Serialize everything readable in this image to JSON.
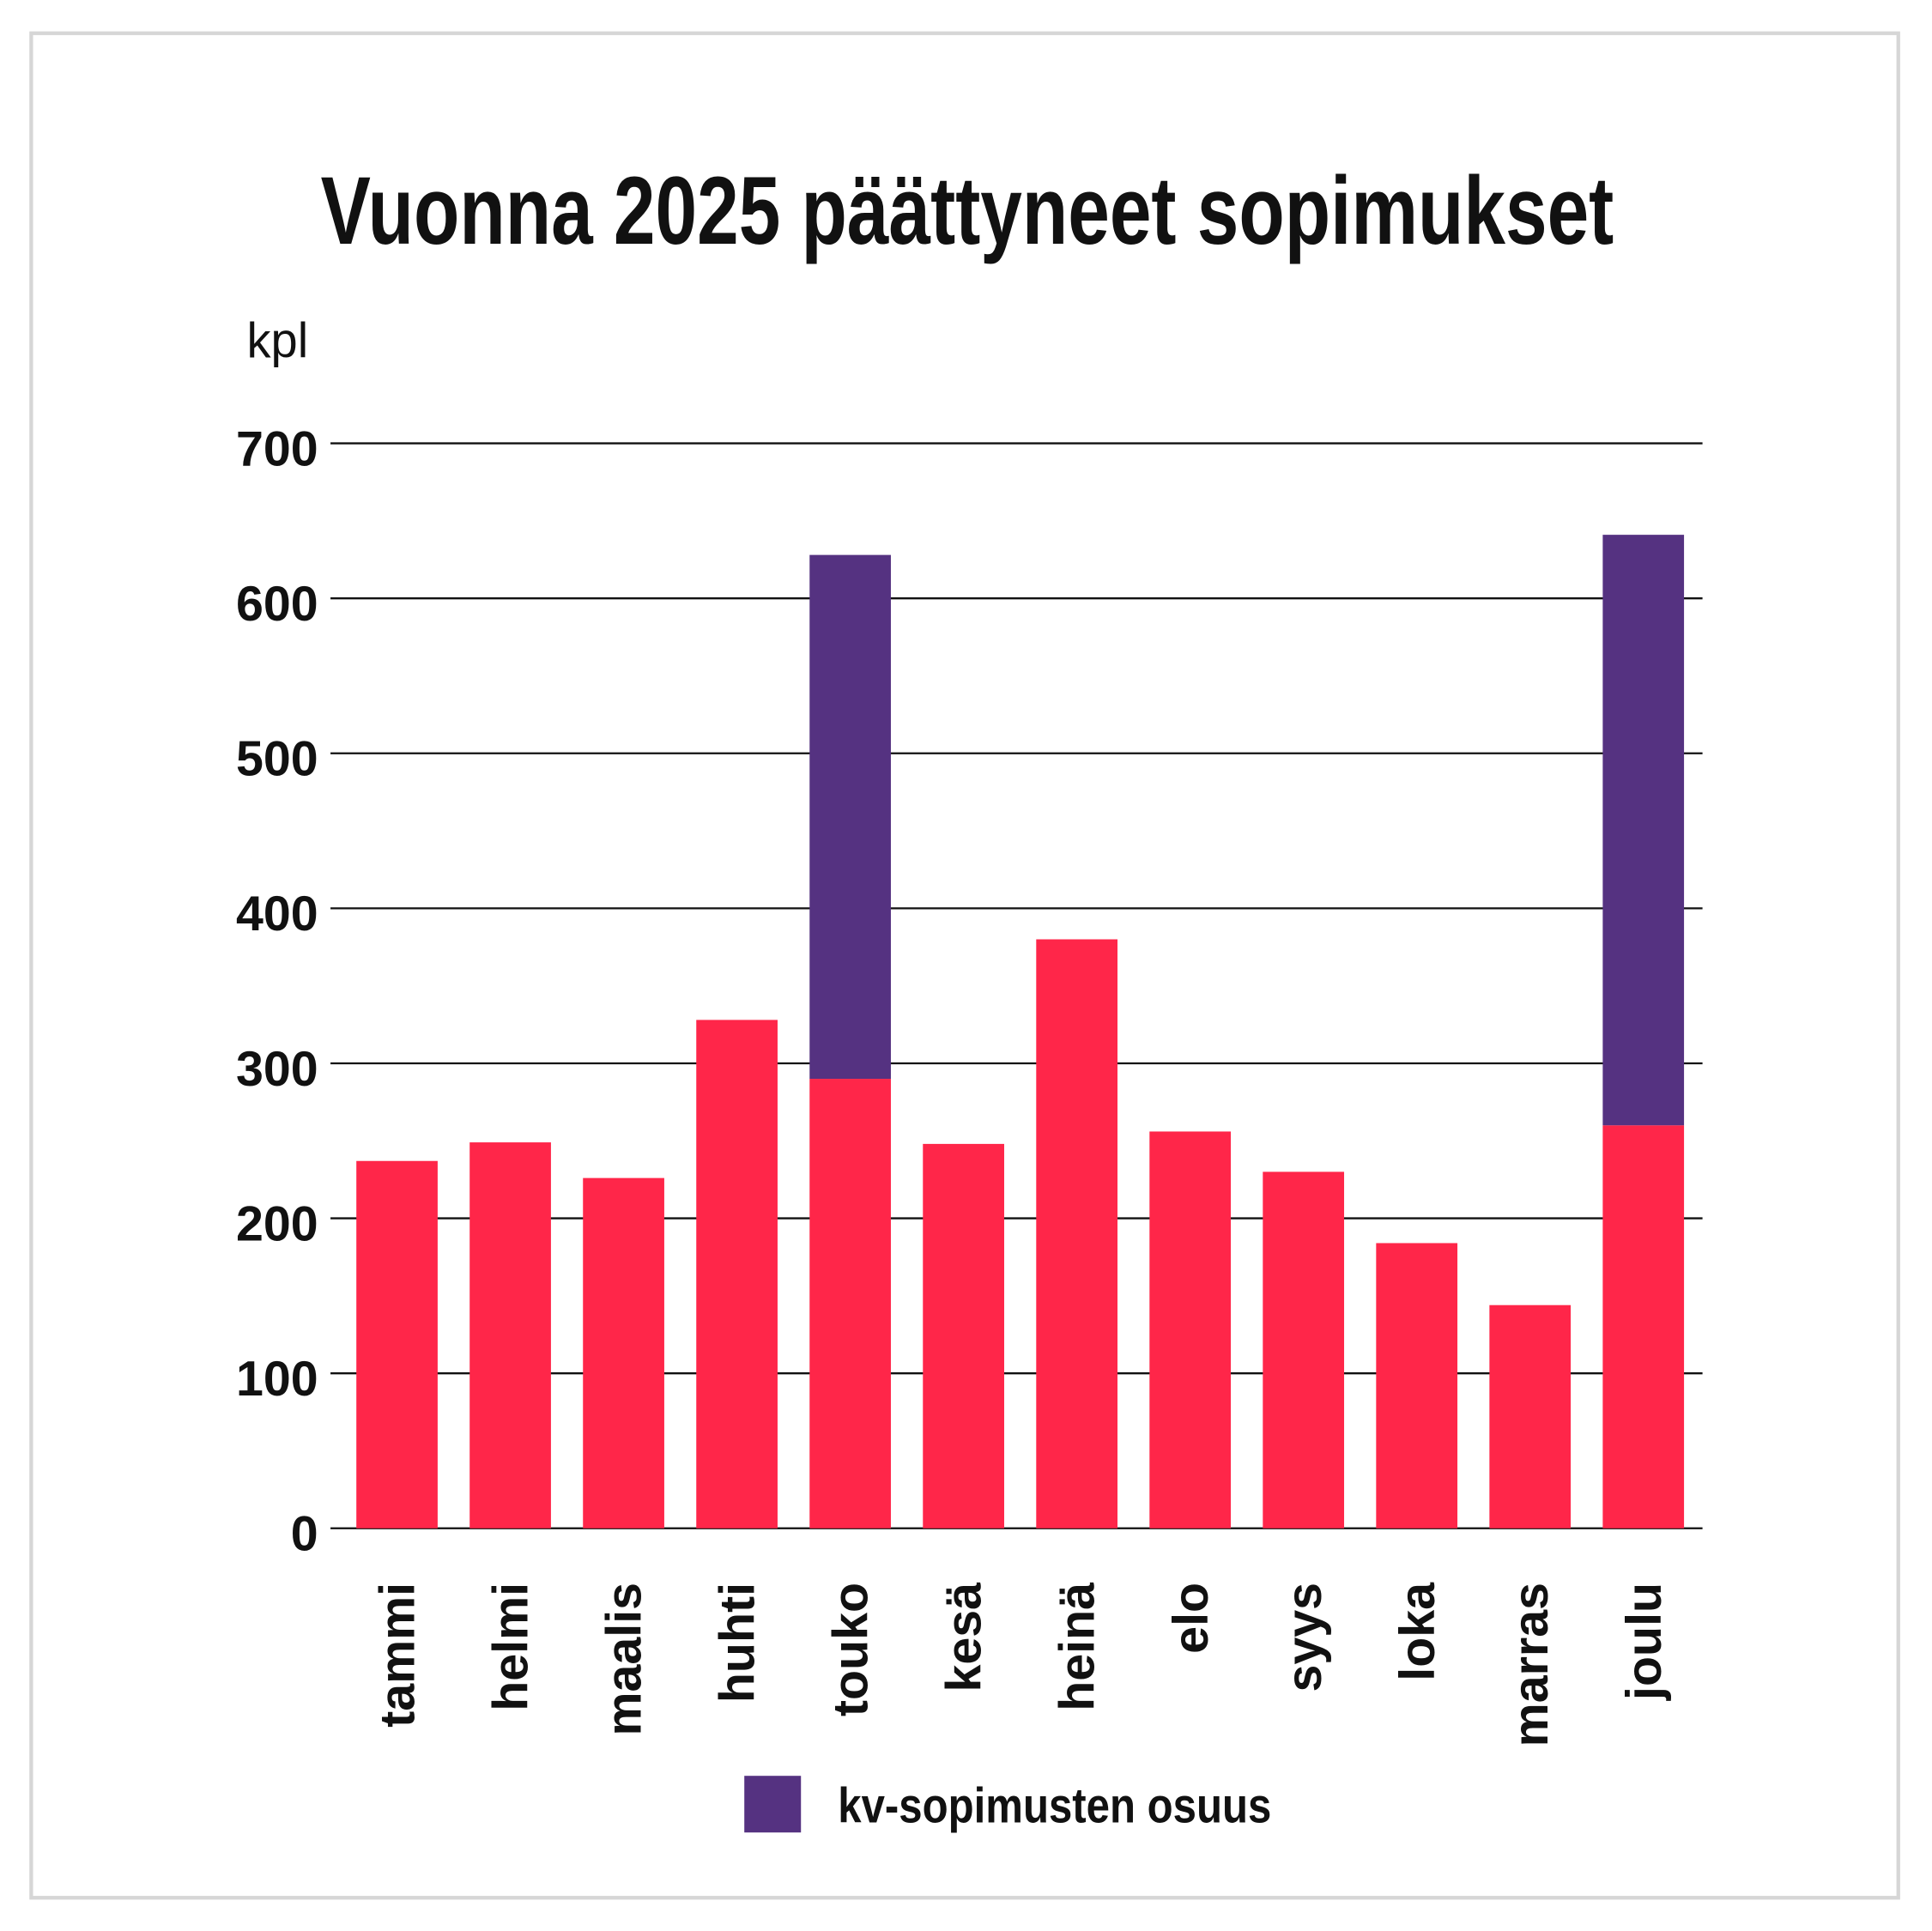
{
  "chart_data": {
    "type": "bar",
    "stacked": true,
    "title": "Vuonna 2025 päättyneet sopimukset",
    "ylabel": "kpl",
    "xlabel": "",
    "ylim": [
      0,
      700
    ],
    "yticks": [
      0,
      100,
      200,
      300,
      400,
      500,
      600,
      700
    ],
    "grid": true,
    "categories": [
      "tammi",
      "helmi",
      "maalis",
      "huhti",
      "touko",
      "kesä",
      "heinä",
      "elo",
      "syys",
      "loka",
      "marras",
      "joulu"
    ],
    "series": [
      {
        "name": "",
        "color": "#FF2649",
        "values": [
          237,
          249,
          226,
          328,
          290,
          248,
          380,
          256,
          230,
          184,
          144,
          260
        ]
      },
      {
        "name": "kv-sopimusten osuus",
        "color": "#553281",
        "values": [
          0,
          0,
          0,
          0,
          338,
          0,
          0,
          0,
          0,
          0,
          0,
          381
        ]
      }
    ],
    "legend_position": "bottom"
  }
}
